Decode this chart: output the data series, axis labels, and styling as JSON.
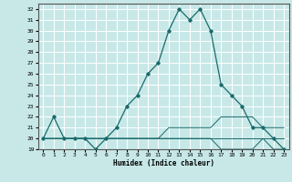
{
  "title": "",
  "xlabel": "Humidex (Indice chaleur)",
  "ylabel": "",
  "bg_color": "#c8e8e8",
  "grid_color": "#ffffff",
  "line_color": "#1a6b6b",
  "xlim": [
    -0.5,
    23.5
  ],
  "ylim": [
    19,
    32.5
  ],
  "xticks": [
    0,
    1,
    2,
    3,
    4,
    5,
    6,
    7,
    8,
    9,
    10,
    11,
    12,
    13,
    14,
    15,
    16,
    17,
    18,
    19,
    20,
    21,
    22,
    23
  ],
  "yticks": [
    19,
    20,
    21,
    22,
    23,
    24,
    25,
    26,
    27,
    28,
    29,
    30,
    31,
    32
  ],
  "series": [
    {
      "x": [
        0,
        1,
        2,
        3,
        4,
        5,
        6,
        7,
        8,
        9,
        10,
        11,
        12,
        13,
        14,
        15,
        16,
        17,
        18,
        19,
        20,
        21,
        22,
        23
      ],
      "y": [
        20,
        22,
        20,
        20,
        20,
        19,
        20,
        21,
        23,
        24,
        26,
        27,
        30,
        32,
        31,
        32,
        30,
        25,
        24,
        23,
        21,
        21,
        20,
        19
      ],
      "marker": true
    },
    {
      "x": [
        0,
        1,
        2,
        3,
        4,
        5,
        6,
        7,
        8,
        9,
        10,
        11,
        12,
        13,
        14,
        15,
        16,
        17,
        18,
        19,
        20,
        21,
        22,
        23
      ],
      "y": [
        20,
        20,
        20,
        20,
        20,
        20,
        20,
        20,
        20,
        20,
        20,
        20,
        21,
        21,
        21,
        21,
        21,
        22,
        22,
        22,
        22,
        21,
        21,
        21
      ],
      "marker": false
    },
    {
      "x": [
        0,
        1,
        2,
        3,
        4,
        5,
        6,
        7,
        8,
        9,
        10,
        11,
        12,
        13,
        14,
        15,
        16,
        17,
        18,
        19,
        20,
        21,
        22,
        23
      ],
      "y": [
        20,
        20,
        20,
        20,
        20,
        20,
        20,
        20,
        20,
        20,
        20,
        20,
        20,
        20,
        20,
        20,
        20,
        19,
        19,
        19,
        19,
        20,
        19,
        19
      ],
      "marker": false
    },
    {
      "x": [
        0,
        1,
        2,
        3,
        4,
        5,
        6,
        7,
        8,
        9,
        10,
        11,
        12,
        13,
        14,
        15,
        16,
        17,
        18,
        19,
        20,
        21,
        22,
        23
      ],
      "y": [
        20,
        20,
        20,
        20,
        20,
        20,
        20,
        20,
        20,
        20,
        20,
        20,
        20,
        20,
        20,
        20,
        20,
        20,
        20,
        20,
        20,
        20,
        20,
        20
      ],
      "marker": false
    }
  ]
}
